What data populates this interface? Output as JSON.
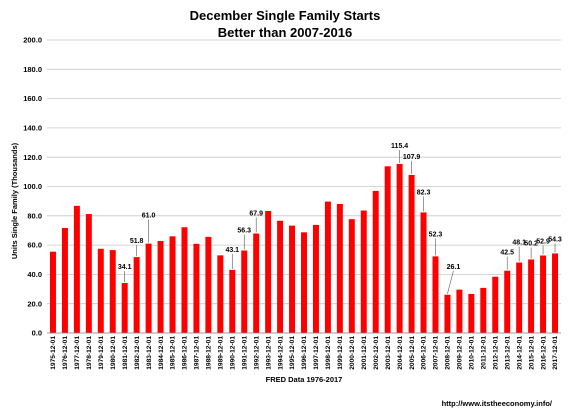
{
  "credit": "http://www.itstheeconomy.info/",
  "chart_data": {
    "type": "bar",
    "title": "December Single Family Starts",
    "subtitle": "Better than 2007-2016",
    "xlabel": "FRED  Data 1976-2017",
    "ylabel": "Units Single Family (Thousands)",
    "ylim": [
      0,
      200
    ],
    "yticks": [
      "0.0",
      "20.0",
      "40.0",
      "60.0",
      "80.0",
      "100.0",
      "120.0",
      "140.0",
      "160.0",
      "180.0",
      "200.0"
    ],
    "grid": true,
    "bar_color": "#ff0000",
    "categories": [
      "1975-12-01",
      "1976-12-01",
      "1977-12-01",
      "1978-12-01",
      "1979-12-01",
      "1980-12-01",
      "1981-12-01",
      "1982-12-01",
      "1983-12-01",
      "1984-12-01",
      "1985-12-01",
      "1986-12-01",
      "1987-12-01",
      "1988-12-01",
      "1989-12-01",
      "1990-12-01",
      "1991-12-01",
      "1992-12-01",
      "1993-12-01",
      "1994-12-01",
      "1995-12-01",
      "1996-12-01",
      "1997-12-01",
      "1998-12-01",
      "1999-12-01",
      "2000-12-01",
      "2001-12-01",
      "2002-12-01",
      "2003-12-01",
      "2004-12-01",
      "2005-12-01",
      "2006-12-01",
      "2007-12-01",
      "2008-12-01",
      "2009-12-01",
      "2010-12-01",
      "2011-12-01",
      "2012-12-01",
      "2013-12-01",
      "2014-12-01",
      "2015-12-01",
      "2016-12-01",
      "2017-12-01"
    ],
    "values": [
      55.5,
      71.7,
      86.8,
      81.2,
      57.5,
      56.6,
      34.1,
      51.8,
      61.0,
      62.8,
      66.0,
      72.2,
      60.9,
      65.6,
      53.0,
      43.1,
      56.3,
      67.9,
      83.3,
      76.6,
      73.3,
      68.7,
      73.8,
      89.7,
      88.1,
      77.7,
      83.6,
      97.0,
      113.8,
      115.4,
      107.9,
      82.3,
      52.3,
      26.1,
      29.6,
      26.7,
      30.8,
      38.4,
      42.5,
      48.1,
      50.2,
      52.9,
      54.3
    ],
    "data_labels": [
      {
        "index": 6,
        "text": "34.1"
      },
      {
        "index": 7,
        "text": "51.8"
      },
      {
        "index": 8,
        "text": "61.0"
      },
      {
        "index": 15,
        "text": "43.1"
      },
      {
        "index": 16,
        "text": "56.3"
      },
      {
        "index": 17,
        "text": "67.9"
      },
      {
        "index": 29,
        "text": "115.4"
      },
      {
        "index": 30,
        "text": "107.9"
      },
      {
        "index": 31,
        "text": "82.3"
      },
      {
        "index": 32,
        "text": "52.3"
      },
      {
        "index": 33,
        "text": "26.1"
      },
      {
        "index": 38,
        "text": "42.5"
      },
      {
        "index": 39,
        "text": "48.1"
      },
      {
        "index": 40,
        "text": "50.2"
      },
      {
        "index": 41,
        "text": "52.9"
      },
      {
        "index": 42,
        "text": "54.3"
      }
    ]
  }
}
